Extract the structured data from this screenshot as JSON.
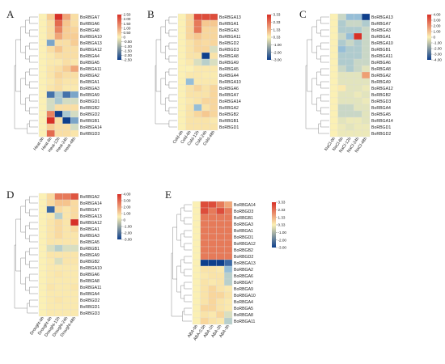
{
  "chart_data": [
    {
      "type": "heatmap",
      "panel": "A",
      "columns": [
        "Heat-0h",
        "Heat-6h",
        "Heat-12h",
        "Heat-24h",
        "Heat-48h"
      ],
      "rows": [
        "BoRBGA7",
        "BoRBGA6",
        "BoRBGA8",
        "BoRBGA10",
        "BoRBGA13",
        "BoRBGA12",
        "BoRBGA4",
        "BoRBGA5",
        "BoRBGA11",
        "BoRBGA2",
        "BoRBGA1",
        "BoRBGA3",
        "BoRBGA9",
        "BoRBGD1",
        "BoRBGB2",
        "BoRBGD2",
        "BoRBGB1",
        "BoRBGA14",
        "BoRBGD3"
      ],
      "values": [
        [
          0.0,
          1.0,
          2.5,
          1.5,
          0.5
        ],
        [
          0.0,
          0.5,
          2.0,
          1.2,
          0.5
        ],
        [
          0.0,
          0.5,
          1.8,
          1.0,
          0.8
        ],
        [
          0.0,
          0.5,
          1.5,
          1.0,
          1.0
        ],
        [
          0.0,
          -1.5,
          0.5,
          0.5,
          1.0
        ],
        [
          0.0,
          0.5,
          1.2,
          0.5,
          0.5
        ],
        [
          0.0,
          0.2,
          0.5,
          0.5,
          0.5
        ],
        [
          0.0,
          0.2,
          0.2,
          0.5,
          0.3
        ],
        [
          0.0,
          0.3,
          0.5,
          1.0,
          1.5
        ],
        [
          0.0,
          0.3,
          0.8,
          0.5,
          0.5
        ],
        [
          0.0,
          0.2,
          0.5,
          0.3,
          0.3
        ],
        [
          0.0,
          0.3,
          0.5,
          0.2,
          0.2
        ],
        [
          0.0,
          -2.0,
          -1.0,
          -2.0,
          -1.5
        ],
        [
          0.0,
          -0.5,
          -1.0,
          -0.5,
          -0.5
        ],
        [
          0.0,
          -0.5,
          0.5,
          0.5,
          0.5
        ],
        [
          0.0,
          1.8,
          -2.5,
          -1.0,
          -0.5
        ],
        [
          0.0,
          2.5,
          0.5,
          -2.5,
          -1.5
        ],
        [
          0.0,
          1.0,
          0.5,
          0.5,
          -0.5
        ],
        [
          0.0,
          2.0,
          0.5,
          0.5,
          0.3
        ]
      ],
      "colorbar_ticks": [
        "2.50",
        "2.00",
        "1.50",
        "1.00",
        "0.50",
        "0",
        "-0.50",
        "-1.00",
        "-1.50",
        "-2.00",
        "-2.50"
      ],
      "range": [
        -2.5,
        2.5
      ]
    },
    {
      "type": "heatmap",
      "panel": "B",
      "columns": [
        "Cold-0h",
        "Cold-6h",
        "Cold-12h",
        "Cold-24h",
        "Cold-48h"
      ],
      "rows": [
        "BoRBGA13",
        "BoRBGA1",
        "BoRBGA3",
        "BoRBGA11",
        "BoRBGD2",
        "BoRBGD3",
        "BoRBGA8",
        "BoRBGA9",
        "BoRBGA5",
        "BoRBGA4",
        "BoRBGA10",
        "BoRBGA6",
        "BoRBGA7",
        "BoRBGA14",
        "BoRBGA2",
        "BoRBGB2",
        "BoRBGB1",
        "BoRBGD1"
      ],
      "values": [
        [
          0.0,
          1.0,
          3.0,
          3.0,
          3.0
        ],
        [
          0.0,
          1.0,
          2.5,
          1.5,
          1.5
        ],
        [
          0.0,
          1.0,
          2.5,
          1.0,
          1.0
        ],
        [
          0.0,
          1.0,
          1.5,
          1.0,
          1.0
        ],
        [
          0.0,
          0.5,
          1.0,
          0.8,
          1.0
        ],
        [
          0.0,
          0.5,
          1.0,
          1.0,
          -0.5
        ],
        [
          0.0,
          0.5,
          0.5,
          -3.0,
          0.5
        ],
        [
          0.0,
          0.3,
          -0.5,
          -1.0,
          -0.5
        ],
        [
          0.0,
          0.0,
          0.3,
          0.3,
          0.3
        ],
        [
          0.0,
          0.3,
          0.3,
          0.2,
          0.2
        ],
        [
          0.0,
          -1.5,
          0.3,
          0.3,
          0.3
        ],
        [
          0.0,
          0.5,
          1.0,
          0.5,
          1.0
        ],
        [
          0.0,
          0.5,
          0.5,
          0.5,
          1.0
        ],
        [
          0.0,
          0.3,
          0.5,
          1.0,
          1.0
        ],
        [
          0.0,
          0.5,
          -1.5,
          0.5,
          1.0
        ],
        [
          0.0,
          0.5,
          1.0,
          1.5,
          1.0
        ],
        [
          0.0,
          0.5,
          0.5,
          0.5,
          0.3
        ],
        [
          0.0,
          0.5,
          0.5,
          0.5,
          0.5
        ]
      ],
      "colorbar_ticks": [
        "3.33",
        "2.33",
        "1.33",
        "0.33",
        "-1.00",
        "-2.00",
        "-3.00"
      ],
      "range": [
        -3.0,
        3.33
      ]
    },
    {
      "type": "heatmap",
      "panel": "C",
      "columns": [
        "NaCl-0h",
        "NaCl-6h",
        "NaCl-12h",
        "NaCl-24h",
        "NaCl-48h"
      ],
      "rows": [
        "BoRBGA13",
        "BoRBGA7",
        "BoRBGA3",
        "BoRBGA1",
        "BoRBGA10",
        "BoRBGB1",
        "BoRBGA11",
        "BoRBGA6",
        "BoRBGA8",
        "BoRBGA2",
        "BoRBGA9",
        "BoRBGA12",
        "BoRBGB2",
        "BoRBGD3",
        "BoRBGA4",
        "BoRBGA5",
        "BoRBGA14",
        "BoRBGD1",
        "BoRBGD2"
      ],
      "values": [
        [
          0.0,
          -1.0,
          -2.0,
          -2.0,
          -4.0
        ],
        [
          0.0,
          -1.5,
          -1.0,
          -1.0,
          -1.5
        ],
        [
          0.0,
          -1.5,
          -1.5,
          -1.5,
          -1.0
        ],
        [
          0.0,
          -1.0,
          -2.0,
          4.0,
          -1.0
        ],
        [
          0.0,
          -1.5,
          -1.0,
          -1.5,
          -1.0
        ],
        [
          0.0,
          -2.0,
          -1.5,
          -1.5,
          -1.0
        ],
        [
          0.0,
          -1.5,
          -1.5,
          -1.5,
          -1.0
        ],
        [
          0.0,
          -1.5,
          -1.5,
          -1.0,
          -1.0
        ],
        [
          0.0,
          -1.0,
          -1.5,
          -1.0,
          -0.5
        ],
        [
          0.0,
          -0.5,
          -0.5,
          -0.5,
          2.5
        ],
        [
          0.0,
          -0.5,
          -0.5,
          -0.5,
          -0.5
        ],
        [
          0.0,
          0.3,
          -0.5,
          -0.5,
          -0.3
        ],
        [
          0.0,
          -0.5,
          -0.5,
          -0.3,
          -0.5
        ],
        [
          0.0,
          -0.5,
          -0.5,
          -0.5,
          -0.3
        ],
        [
          0.0,
          -1.0,
          -1.0,
          -0.5,
          -0.5
        ],
        [
          0.0,
          -1.0,
          -1.0,
          -1.0,
          -0.5
        ],
        [
          0.0,
          -0.5,
          -0.3,
          -0.3,
          -0.5
        ],
        [
          0.0,
          -0.3,
          -0.5,
          -0.3,
          -0.3
        ],
        [
          0.0,
          -0.3,
          -0.3,
          -0.3,
          -0.3
        ]
      ],
      "colorbar_ticks": [
        "4.00",
        "3.00",
        "2.00",
        "1.00",
        "0",
        "-1.00",
        "-2.00",
        "-3.00",
        "-4.00"
      ],
      "range": [
        -4.0,
        4.0
      ]
    },
    {
      "type": "heatmap",
      "panel": "D",
      "columns": [
        "Drought-0h",
        "Drought-6h",
        "Drought-12h",
        "Drought-24h",
        "Drought-48h"
      ],
      "rows": [
        "BoRBGA2",
        "BoRBGA14",
        "BoRBGA7",
        "BoRBGA13",
        "BoRBGA12",
        "BoRBGA1",
        "BoRBGA3",
        "BoRBGA5",
        "BoRBGB1",
        "BoRBGA9",
        "BoRBGB2",
        "BoRBGA10",
        "BoRBGA6",
        "BoRBGA8",
        "BoRBGA11",
        "BoRBGA4",
        "BoRBGD2",
        "BoRBGD1",
        "BoRBGD3"
      ],
      "values": [
        [
          0.0,
          1.0,
          3.0,
          3.0,
          3.5
        ],
        [
          0.0,
          1.0,
          2.0,
          2.0,
          1.0
        ],
        [
          0.0,
          -2.5,
          1.0,
          0.5,
          1.0
        ],
        [
          0.0,
          0.3,
          -1.0,
          0.5,
          1.0
        ],
        [
          0.0,
          0.5,
          1.0,
          0.5,
          4.0
        ],
        [
          0.0,
          0.5,
          1.0,
          0.5,
          1.0
        ],
        [
          0.0,
          0.5,
          1.0,
          0.5,
          0.5
        ],
        [
          0.0,
          0.5,
          0.5,
          0.5,
          0.5
        ],
        [
          0.0,
          -0.5,
          -1.0,
          -0.5,
          -0.5
        ],
        [
          0.0,
          0.5,
          0.5,
          0.5,
          0.5
        ],
        [
          0.0,
          0.3,
          -0.5,
          0.5,
          0.5
        ],
        [
          0.0,
          0.3,
          0.3,
          0.3,
          0.3
        ],
        [
          0.0,
          0.3,
          0.5,
          0.3,
          0.3
        ],
        [
          0.0,
          0.3,
          0.3,
          0.3,
          0.3
        ],
        [
          0.0,
          0.5,
          0.3,
          0.3,
          0.5
        ],
        [
          0.0,
          0.3,
          0.3,
          0.3,
          0.3
        ],
        [
          0.0,
          0.3,
          0.5,
          0.3,
          0.3
        ],
        [
          0.0,
          0.3,
          0.3,
          0.3,
          0.3
        ],
        [
          0.0,
          0.3,
          0.3,
          0.3,
          0.3
        ]
      ],
      "colorbar_ticks": [
        "4.00",
        "3.00",
        "2.00",
        "1.00",
        "0",
        "-1.00",
        "-2.00",
        "-3.00"
      ],
      "range": [
        -3.0,
        4.0
      ]
    },
    {
      "type": "heatmap",
      "panel": "E",
      "columns": [
        "ABA-0h",
        "ABA-0.5h",
        "ABA-1h",
        "ABA-2h",
        "ABA-3h"
      ],
      "rows": [
        "BoRBGA14",
        "BoRBGD3",
        "BoRBGB1",
        "BoRBGA3",
        "BoRBGA1",
        "BoRBGD1",
        "BoRBGA12",
        "BoRBGB2",
        "BoRBGD2",
        "BoRBGA13",
        "BoRBGA2",
        "BoRBGA6",
        "BoRBGA7",
        "BoRBGA9",
        "BoRBGA10",
        "BoRBGA4",
        "BoRBGA5",
        "BoRBGA8",
        "BoRBGA11"
      ],
      "values": [
        [
          0.0,
          3.0,
          3.0,
          2.5,
          2.0
        ],
        [
          0.0,
          3.0,
          2.5,
          3.0,
          2.5
        ],
        [
          0.0,
          2.5,
          2.5,
          2.5,
          2.5
        ],
        [
          0.0,
          2.5,
          2.5,
          2.5,
          2.5
        ],
        [
          0.0,
          2.5,
          2.5,
          2.5,
          2.5
        ],
        [
          0.0,
          2.5,
          2.5,
          2.5,
          2.5
        ],
        [
          0.0,
          2.5,
          2.5,
          2.5,
          2.5
        ],
        [
          0.0,
          2.5,
          2.5,
          2.5,
          2.5
        ],
        [
          0.0,
          2.5,
          2.5,
          2.5,
          2.5
        ],
        [
          0.0,
          -3.0,
          -3.0,
          -3.0,
          -2.5
        ],
        [
          0.0,
          0.5,
          0.5,
          0.3,
          -1.5
        ],
        [
          0.0,
          0.3,
          0.5,
          0.5,
          -1.0
        ],
        [
          0.0,
          0.5,
          0.3,
          0.5,
          -1.0
        ],
        [
          0.0,
          0.5,
          1.0,
          0.5,
          0.3
        ],
        [
          0.0,
          0.5,
          1.0,
          1.0,
          0.5
        ],
        [
          0.0,
          0.5,
          1.0,
          0.5,
          0.3
        ],
        [
          0.0,
          1.0,
          1.0,
          0.5,
          0.3
        ],
        [
          0.0,
          0.5,
          0.3,
          1.0,
          -0.5
        ],
        [
          0.0,
          1.0,
          0.5,
          0.3,
          -1.0
        ]
      ],
      "colorbar_ticks": [
        "3.33",
        "2.33",
        "1.33",
        "0.33",
        "-1.00",
        "-2.00",
        "-3.00"
      ],
      "range": [
        -3.0,
        3.33
      ]
    }
  ]
}
